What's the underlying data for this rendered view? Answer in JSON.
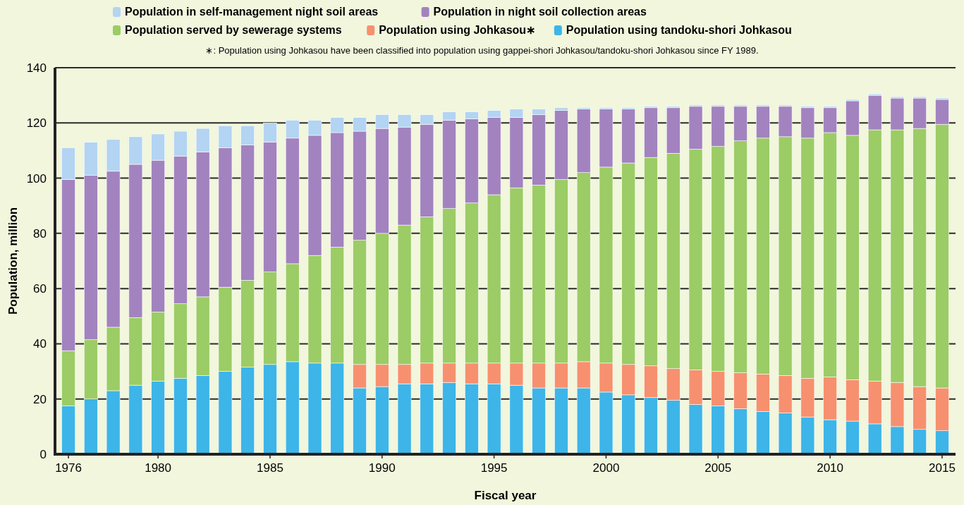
{
  "chart_data": {
    "type": "bar",
    "stacked": true,
    "xlabel": "Fiscal year",
    "ylabel": "Population, million",
    "annotations": [
      "∗: Population using Johkasou have been classified into population using gappei-shori Johkasou/tandoku-shori Johkasou since FY 1989."
    ],
    "categories": [
      "1976",
      null,
      null,
      null,
      "1980",
      null,
      null,
      null,
      null,
      "1985",
      null,
      null,
      null,
      null,
      "1990",
      null,
      null,
      null,
      null,
      "1995",
      null,
      null,
      null,
      null,
      "2000",
      null,
      null,
      null,
      null,
      "2005",
      null,
      null,
      null,
      null,
      "2010",
      null,
      null,
      null,
      null,
      "2015"
    ],
    "ylim": [
      0,
      140
    ],
    "yticks": [
      0,
      20,
      40,
      60,
      80,
      100,
      120,
      140
    ],
    "grid": "y",
    "legend": "top",
    "series": [
      {
        "name": "Population using tandoku-shori Johkasou",
        "color": "#3db5e8",
        "values": [
          17.5,
          20,
          23,
          25,
          26.5,
          27.5,
          28.5,
          30,
          31.5,
          32.5,
          33.5,
          33,
          33,
          24,
          24.5,
          25.5,
          25.5,
          26,
          25.5,
          25.5,
          25,
          24,
          24,
          24,
          22.5,
          21.5,
          20.5,
          19.5,
          18,
          17.5,
          16.5,
          15.5,
          15,
          13.5,
          12.5,
          12,
          11,
          10,
          9,
          8.5
        ]
      },
      {
        "name": "Population using Johkasou∗",
        "color": "#f7906f",
        "values": [
          null,
          null,
          null,
          null,
          null,
          null,
          null,
          null,
          null,
          null,
          null,
          null,
          null,
          8.5,
          8,
          7,
          7.5,
          7,
          7.5,
          7.5,
          8,
          9,
          9,
          9.5,
          10.5,
          11,
          11.5,
          11.5,
          12.5,
          12.5,
          13,
          13.5,
          13.5,
          14,
          15.5,
          15,
          15.5,
          16,
          15.5,
          15.5
        ]
      },
      {
        "name": "Population served by sewerage systems",
        "color": "#9ccc65",
        "values": [
          20,
          21.5,
          23,
          24.5,
          25,
          27,
          28.5,
          30.5,
          31.5,
          33.5,
          35.5,
          39,
          42,
          45,
          47.5,
          50.5,
          53,
          56,
          58,
          61,
          63.5,
          64.5,
          66.5,
          68.5,
          71,
          73,
          75.5,
          78,
          80,
          81.5,
          84,
          85.5,
          86.5,
          87,
          88.5,
          88.5,
          91,
          91.5,
          93.5,
          95.5
        ]
      },
      {
        "name": "Population in night soil collection areas",
        "color": "#a283bf",
        "values": [
          62,
          59.5,
          56.5,
          55.5,
          55,
          53.5,
          52.5,
          50.5,
          49,
          47,
          45.5,
          43.5,
          41.5,
          39.5,
          38,
          35.5,
          33.5,
          32,
          30.5,
          28,
          25.5,
          25.5,
          25,
          23,
          21,
          19.5,
          18,
          16.5,
          15.5,
          14.5,
          12.5,
          11.5,
          11,
          11,
          9,
          12.5,
          12.5,
          11.5,
          11,
          9
        ]
      },
      {
        "name": "Population in self-management night soil areas",
        "color": "#b3d4f2",
        "values": [
          11.5,
          12,
          11.5,
          10,
          9.5,
          9,
          8.5,
          8,
          7,
          7,
          6.5,
          5.5,
          5.5,
          5,
          5,
          4.5,
          3.5,
          3,
          2.5,
          2.5,
          3,
          2,
          1,
          0.5,
          0.5,
          0.5,
          0.5,
          0.5,
          0.5,
          0.5,
          0.5,
          0.5,
          0.5,
          0.5,
          0.5,
          0.5,
          0.5,
          0.5,
          0.5,
          0.5
        ]
      }
    ]
  }
}
